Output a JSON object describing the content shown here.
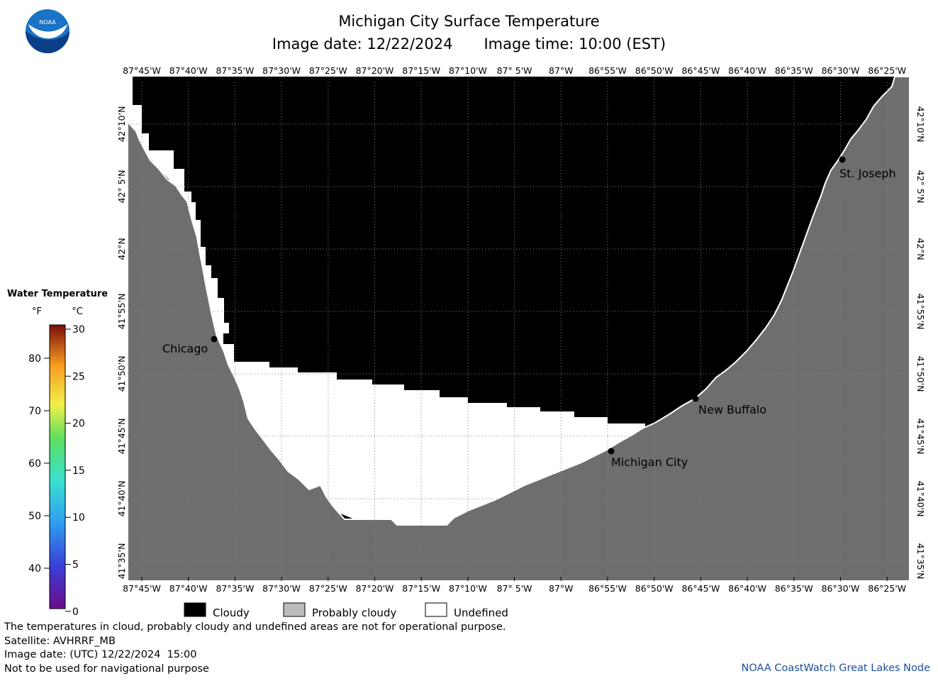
{
  "header": {
    "title": "Michigan City Surface Temperature",
    "subtitle_date": "Image date: 12/22/2024",
    "subtitle_time": "Image time: 10:00 (EST)"
  },
  "logo": {
    "text": "NOAA",
    "icon": "noaa-logo"
  },
  "axes": {
    "lon_labels": [
      "87°45'W",
      "87°40'W",
      "87°35'W",
      "87°30'W",
      "87°25'W",
      "87°20'W",
      "87°15'W",
      "87°10'W",
      "87° 5'W",
      "87°W",
      "86°55'W",
      "86°50'W",
      "86°45'W",
      "86°40'W",
      "86°35'W",
      "86°30'W",
      "86°25'W"
    ],
    "lat_labels": [
      "42°10'N",
      "42° 5'N",
      "42°N",
      "41°55'N",
      "41°50'N",
      "41°45'N",
      "41°40'N",
      "41°35'N"
    ]
  },
  "places": [
    {
      "name": "Chicago"
    },
    {
      "name": "Michigan City"
    },
    {
      "name": "New Buffalo"
    },
    {
      "name": "St. Joseph"
    }
  ],
  "legend": {
    "title": "Water Temperature",
    "unit_f": "°F",
    "unit_c": "°C",
    "f_ticks": [
      "80",
      "70",
      "60",
      "50",
      "40"
    ],
    "c_ticks": [
      "30",
      "25",
      "20",
      "15",
      "10",
      "5",
      "0"
    ]
  },
  "key": [
    {
      "label": "Cloudy",
      "color": "#000000"
    },
    {
      "label": "Probably cloudy",
      "color": "#bdbdbd"
    },
    {
      "label": "Undefined",
      "color": "#ffffff"
    }
  ],
  "colors": {
    "land": "#6e6e6e",
    "cloud": "#000000",
    "undefined": "#ffffff",
    "credit": "#1f4e9a"
  },
  "footer": {
    "note": "The temperatures in cloud, probably cloudy and undefined areas are not for operational purpose.",
    "satellite": "Satellite: AVHRRF_MB",
    "utc_date": "Image date: (UTC) 12/22/2024  15:00",
    "nav_warning": "Not to be used for navigational purpose",
    "credit": "NOAA CoastWatch Great Lakes Node"
  }
}
